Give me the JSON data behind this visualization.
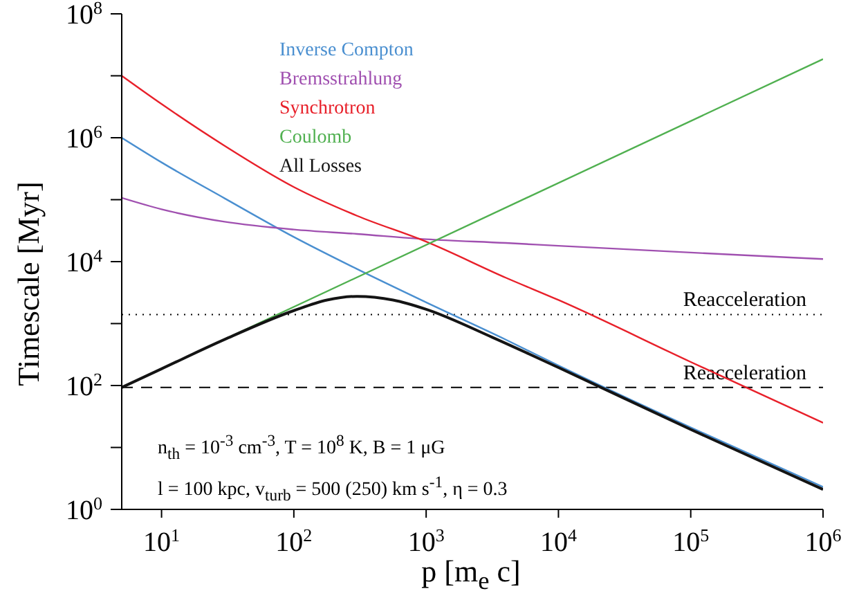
{
  "chart_data": {
    "type": "line",
    "xlabel": "p [m$_{e}$ c]",
    "ylabel": "Timescale [Myr]",
    "log": "xy",
    "grid": false,
    "legend": "top",
    "marker": "none",
    "xlim": [
      5,
      1000000
    ],
    "ylim": [
      1,
      100000000
    ],
    "xticks": [
      {
        "value": 10,
        "label": "10$^{1}$"
      },
      {
        "value": 100,
        "label": "10$^{2}$"
      },
      {
        "value": 1000,
        "label": "10$^{3}$"
      },
      {
        "value": 10000,
        "label": "10$^{4}$"
      },
      {
        "value": 100000,
        "label": "10$^{5}$"
      },
      {
        "value": 1000000,
        "label": "10$^{6}$"
      }
    ],
    "yticks": [
      {
        "value": 1,
        "label": "10$^{0}$"
      },
      {
        "value": 10,
        "label": null
      },
      {
        "value": 100,
        "label": "10$^{2}$"
      },
      {
        "value": 1000,
        "label": null
      },
      {
        "value": 10000,
        "label": "10$^{4}$"
      },
      {
        "value": 100000,
        "label": null
      },
      {
        "value": 1000000,
        "label": "10$^{6}$"
      },
      {
        "value": 10000000,
        "label": null
      },
      {
        "value": 100000000,
        "label": "10$^{8}$"
      }
    ],
    "series": [
      {
        "name": "Inverse Compton",
        "color": "#4a8fd0",
        "x": [
          5,
          10,
          30,
          100,
          300,
          1000,
          4000,
          10000,
          100000,
          1000000
        ],
        "values": [
          1000000,
          400000,
          105000,
          25000,
          7600,
          2200,
          550,
          210,
          21,
          2.3
        ]
      },
      {
        "name": "Bremsstrahlung",
        "color": "#a050b0",
        "x": [
          5,
          10,
          30,
          100,
          300,
          1000,
          4000,
          10000,
          100000,
          1000000
        ],
        "values": [
          107000,
          70000,
          44000,
          33000,
          28000,
          23000,
          20000,
          18000,
          14000,
          11000
        ]
      },
      {
        "name": "Synchrotron",
        "color": "#e8202a",
        "x": [
          5,
          10,
          30,
          100,
          300,
          1000,
          4000,
          10000,
          100000,
          1000000
        ],
        "values": [
          10000000,
          3500000,
          740000,
          160000,
          55000,
          21000,
          5500,
          2400,
          240,
          25
        ]
      },
      {
        "name": "Coulomb",
        "color": "#50b050",
        "x": [
          5,
          1000000
        ],
        "values": [
          93,
          18600000
        ]
      },
      {
        "name": "All Losses",
        "color": "#141414",
        "x": [
          5,
          10,
          30,
          100,
          178,
          300,
          562,
          1000,
          3162,
          10000,
          100000,
          1000000
        ],
        "values": [
          93,
          186,
          555,
          1620,
          2400,
          2750,
          2400,
          1700,
          600,
          195,
          19.5,
          2.1
        ]
      }
    ],
    "ref_lines": [
      {
        "axis": "y",
        "value": 1400,
        "label": "Reacceleration",
        "line_style": "dotted",
        "color": "#000000"
      },
      {
        "axis": "y",
        "value": 93,
        "label": "Reacceleration",
        "line_style": "dashed",
        "color": "#000000"
      }
    ],
    "annotations": [
      "n$_{th}$ = 10$^{-3}$ cm$^{-3}$, T = 10$^{8}$ K, B = 1 μG",
      "l = 100 kpc, v$_{turb}$ = 500 (250) km s$^{-1}$, η = 0.3"
    ]
  }
}
